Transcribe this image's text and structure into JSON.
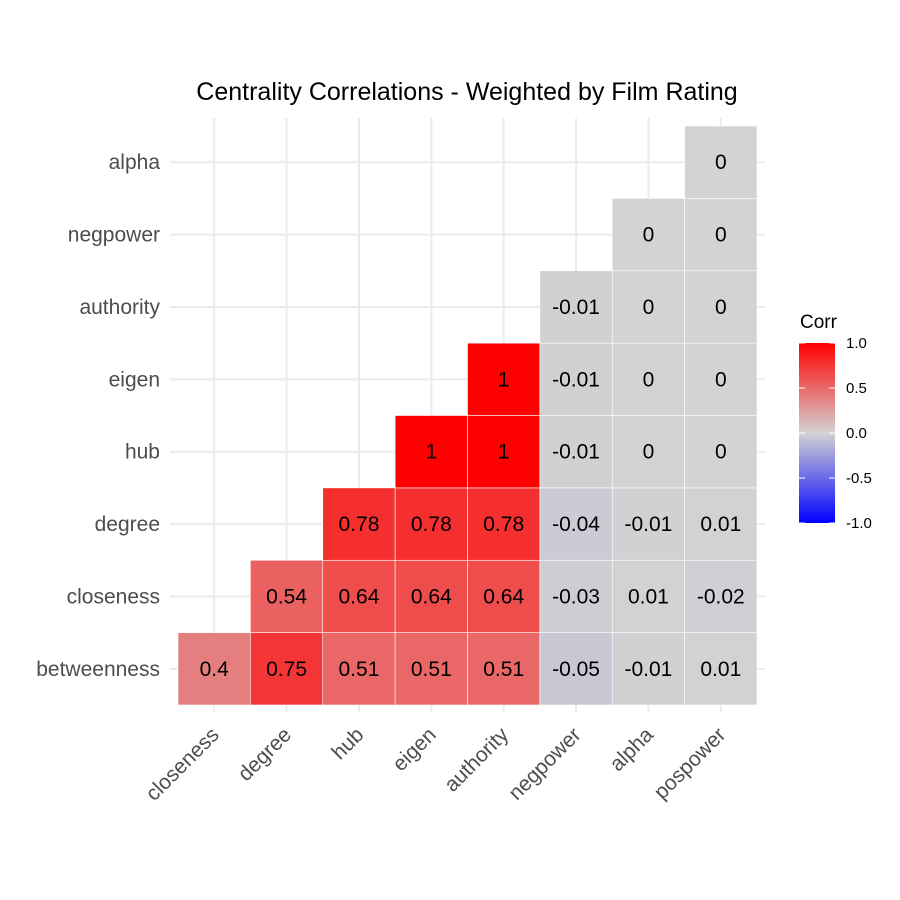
{
  "chart_data": {
    "type": "heatmap",
    "title": "Centrality Correlations - Weighted by Film Rating",
    "x_categories": [
      "closeness",
      "degree",
      "hub",
      "eigen",
      "authority",
      "negpower",
      "alpha",
      "pospower"
    ],
    "y_categories": [
      "betweenness",
      "closeness",
      "degree",
      "hub",
      "eigen",
      "authority",
      "negpower",
      "alpha"
    ],
    "cells": [
      {
        "x": "closeness",
        "y": "betweenness",
        "value": 0.4,
        "label": "0.4"
      },
      {
        "x": "degree",
        "y": "betweenness",
        "value": 0.75,
        "label": "0.75"
      },
      {
        "x": "hub",
        "y": "betweenness",
        "value": 0.51,
        "label": "0.51"
      },
      {
        "x": "eigen",
        "y": "betweenness",
        "value": 0.51,
        "label": "0.51"
      },
      {
        "x": "authority",
        "y": "betweenness",
        "value": 0.51,
        "label": "0.51"
      },
      {
        "x": "negpower",
        "y": "betweenness",
        "value": -0.05,
        "label": "-0.05"
      },
      {
        "x": "alpha",
        "y": "betweenness",
        "value": -0.01,
        "label": "-0.01"
      },
      {
        "x": "pospower",
        "y": "betweenness",
        "value": 0.01,
        "label": "0.01"
      },
      {
        "x": "degree",
        "y": "closeness",
        "value": 0.54,
        "label": "0.54"
      },
      {
        "x": "hub",
        "y": "closeness",
        "value": 0.64,
        "label": "0.64"
      },
      {
        "x": "eigen",
        "y": "closeness",
        "value": 0.64,
        "label": "0.64"
      },
      {
        "x": "authority",
        "y": "closeness",
        "value": 0.64,
        "label": "0.64"
      },
      {
        "x": "negpower",
        "y": "closeness",
        "value": -0.03,
        "label": "-0.03"
      },
      {
        "x": "alpha",
        "y": "closeness",
        "value": 0.01,
        "label": "0.01"
      },
      {
        "x": "pospower",
        "y": "closeness",
        "value": -0.02,
        "label": "-0.02"
      },
      {
        "x": "hub",
        "y": "degree",
        "value": 0.78,
        "label": "0.78"
      },
      {
        "x": "eigen",
        "y": "degree",
        "value": 0.78,
        "label": "0.78"
      },
      {
        "x": "authority",
        "y": "degree",
        "value": 0.78,
        "label": "0.78"
      },
      {
        "x": "negpower",
        "y": "degree",
        "value": -0.04,
        "label": "-0.04"
      },
      {
        "x": "alpha",
        "y": "degree",
        "value": -0.01,
        "label": "-0.01"
      },
      {
        "x": "pospower",
        "y": "degree",
        "value": 0.01,
        "label": "0.01"
      },
      {
        "x": "eigen",
        "y": "hub",
        "value": 1,
        "label": "1"
      },
      {
        "x": "authority",
        "y": "hub",
        "value": 1,
        "label": "1"
      },
      {
        "x": "negpower",
        "y": "hub",
        "value": -0.01,
        "label": "-0.01"
      },
      {
        "x": "alpha",
        "y": "hub",
        "value": 0,
        "label": "0"
      },
      {
        "x": "pospower",
        "y": "hub",
        "value": 0,
        "label": "0"
      },
      {
        "x": "authority",
        "y": "eigen",
        "value": 1,
        "label": "1"
      },
      {
        "x": "negpower",
        "y": "eigen",
        "value": -0.01,
        "label": "-0.01"
      },
      {
        "x": "alpha",
        "y": "eigen",
        "value": 0,
        "label": "0"
      },
      {
        "x": "pospower",
        "y": "eigen",
        "value": 0,
        "label": "0"
      },
      {
        "x": "negpower",
        "y": "authority",
        "value": -0.01,
        "label": "-0.01"
      },
      {
        "x": "alpha",
        "y": "authority",
        "value": 0,
        "label": "0"
      },
      {
        "x": "pospower",
        "y": "authority",
        "value": 0,
        "label": "0"
      },
      {
        "x": "alpha",
        "y": "negpower",
        "value": 0,
        "label": "0"
      },
      {
        "x": "pospower",
        "y": "negpower",
        "value": 0,
        "label": "0"
      },
      {
        "x": "pospower",
        "y": "alpha",
        "value": 0,
        "label": "0"
      }
    ],
    "legend": {
      "title": "Corr",
      "ticks": [
        "1.0",
        "0.5",
        "0.0",
        "-0.5",
        "-1.0"
      ],
      "tick_values": [
        1,
        0.5,
        0,
        -0.5,
        -1
      ],
      "placement": "right"
    },
    "colors": {
      "low": "#0000ff",
      "mid": "#d3d3d3",
      "high": "#ff0000"
    },
    "value_range": [
      -1,
      1
    ],
    "grid": true
  }
}
